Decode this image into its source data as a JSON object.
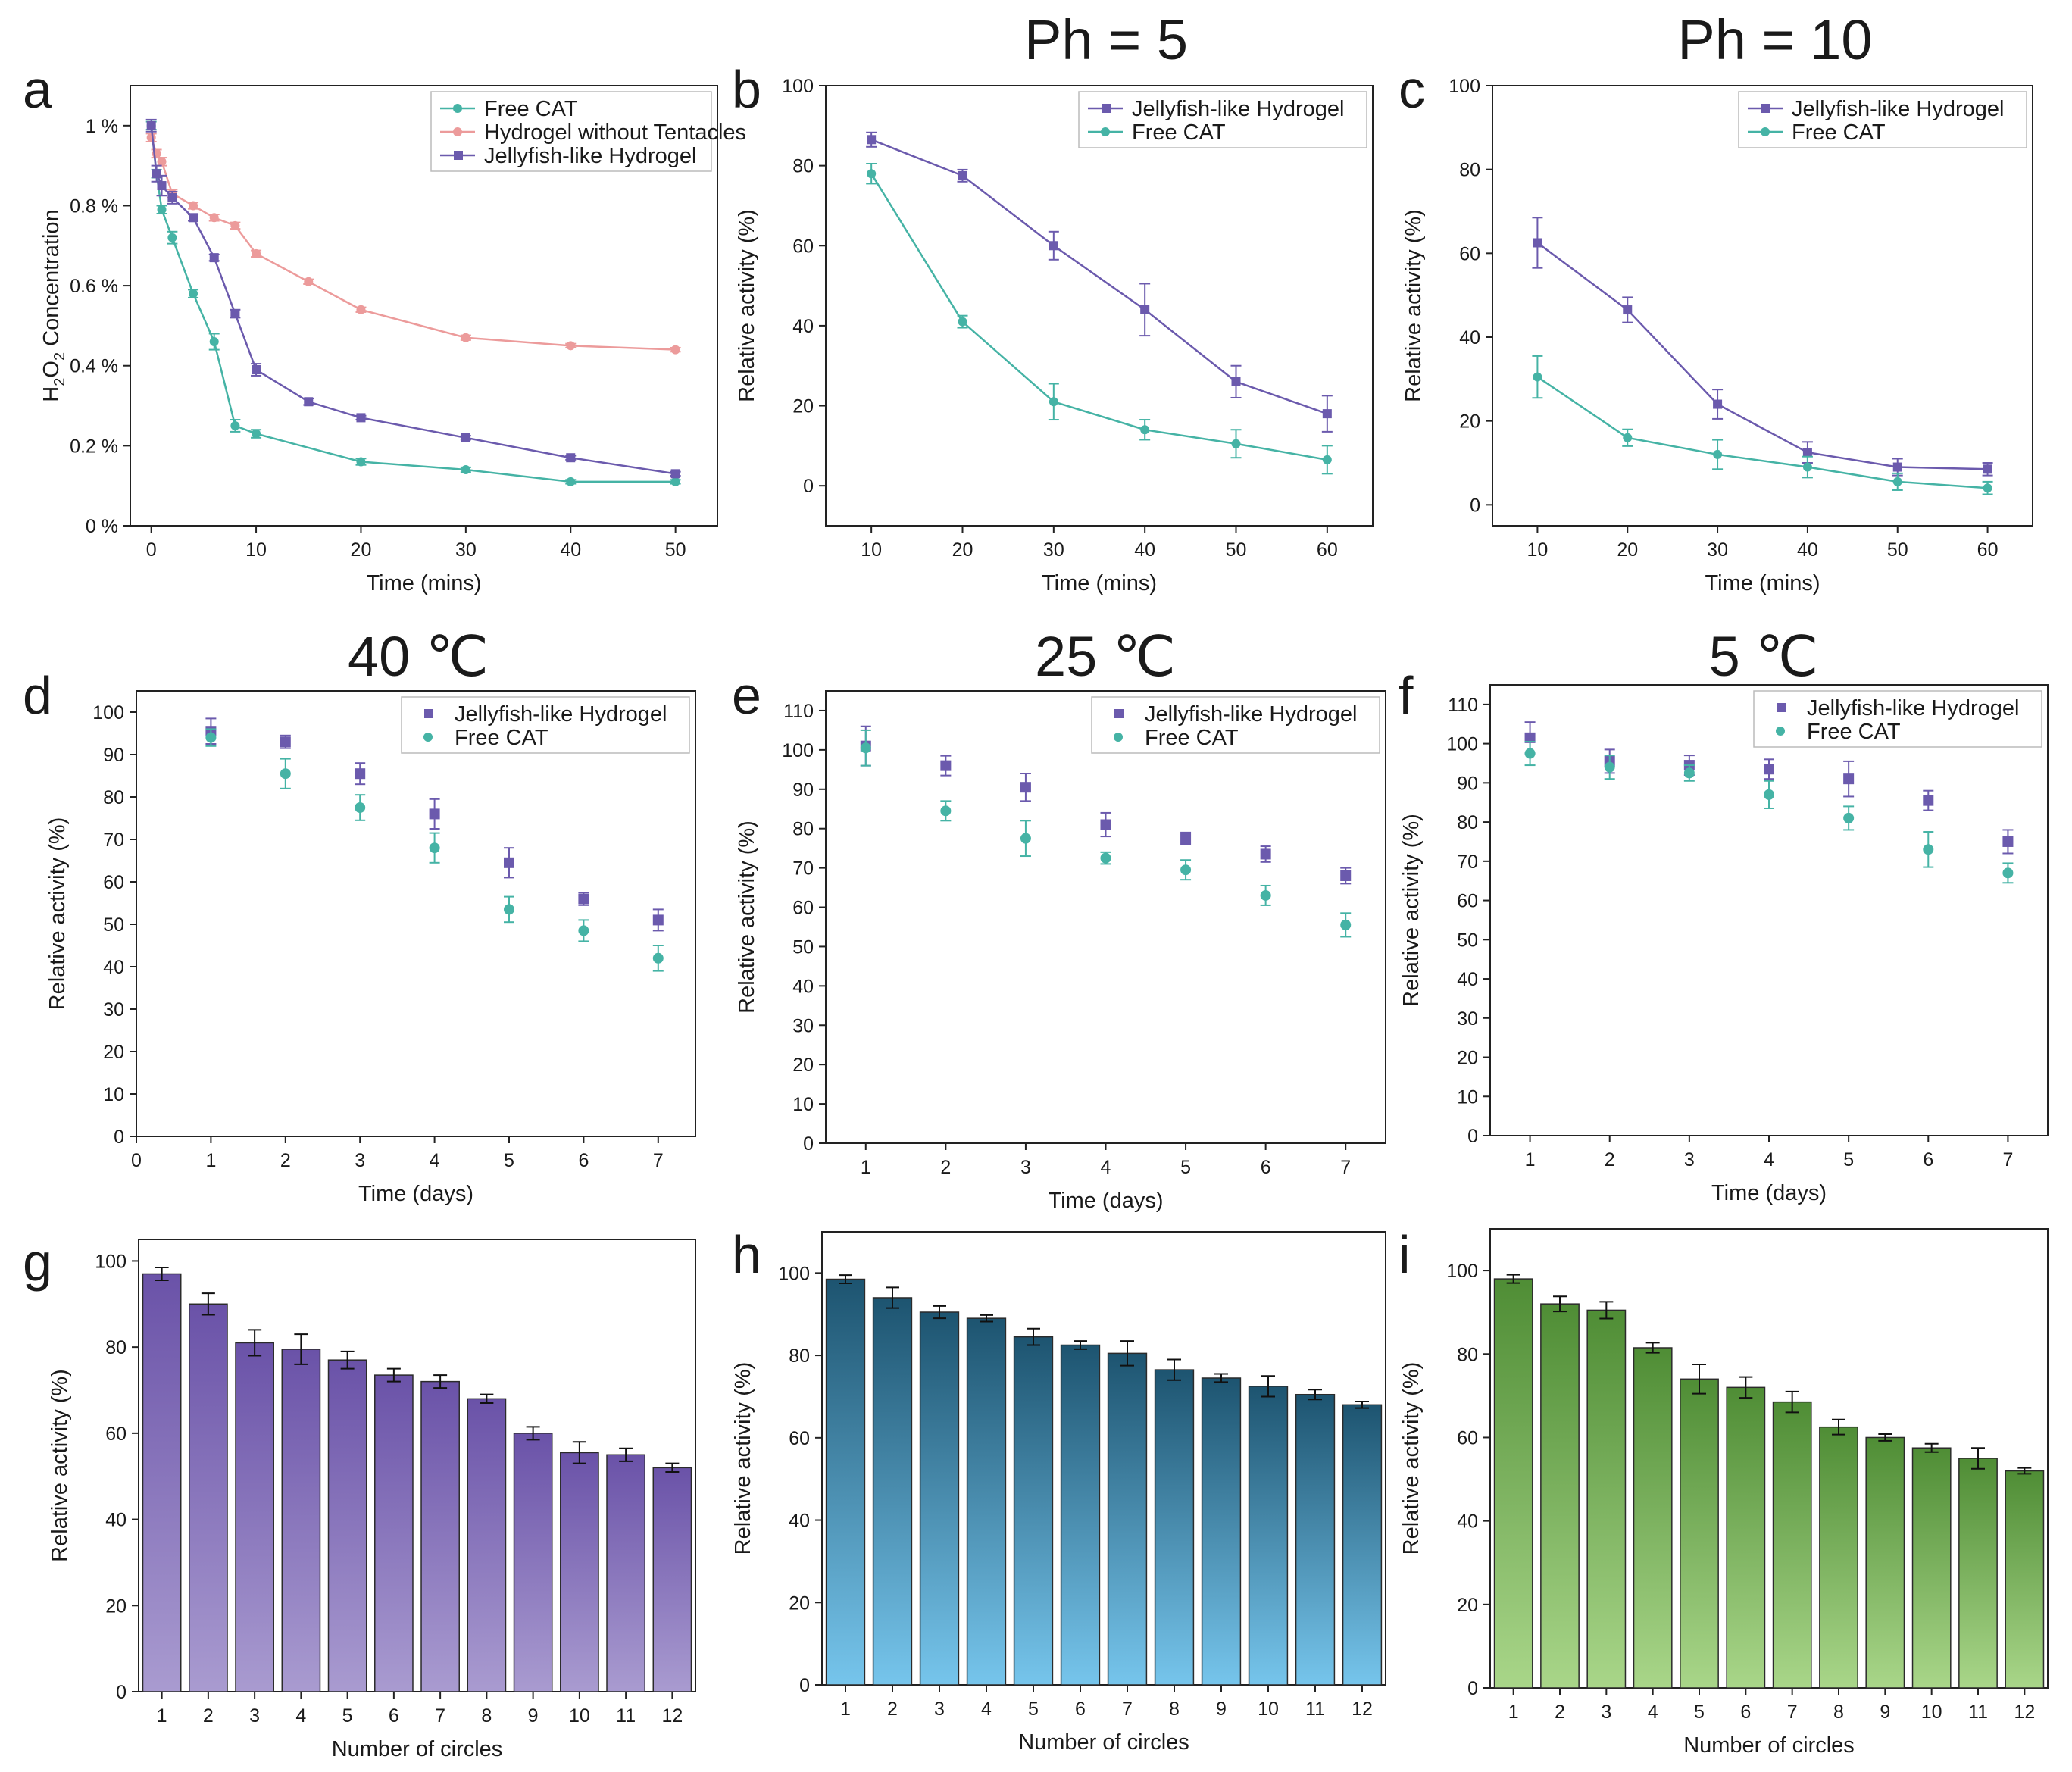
{
  "colors": {
    "purple": "#6b5aad",
    "teal": "#45b3a5",
    "pink": "#ec9b9b",
    "purple_bar_top": "#6a52a8",
    "purple_bar_bottom": "#a99bd0",
    "blue_bar_top": "#1d5470",
    "blue_bar_bottom": "#76c5ec",
    "green_bar_top": "#4f8d35",
    "green_bar_bottom": "#a9d689"
  },
  "column_titles": [
    "Ph  = 5",
    "Ph  = 10"
  ],
  "chart_data": [
    {
      "panel": "a",
      "type": "line",
      "xlabel": "Time (mins)",
      "ylabel_main": "H",
      "ylabel_sub1": "2",
      "ylabel_mid": "O",
      "ylabel_sub2": "2",
      "ylabel_end": " Concentration",
      "xlim": [
        -2,
        54
      ],
      "ylim": [
        0,
        1.1
      ],
      "xticks": [
        0,
        10,
        20,
        30,
        40,
        50
      ],
      "xtick_labels": [
        "0",
        "10",
        "20",
        "30",
        "40",
        "50"
      ],
      "yticks": [
        0,
        0.2,
        0.4,
        0.6,
        0.8,
        1.0
      ],
      "ytick_labels": [
        "0 %",
        "0.2 %",
        "0.4 %",
        "0.6 %",
        "0.8 %",
        "1 %"
      ],
      "legend_position": "top-right",
      "series": [
        {
          "name": "Free CAT",
          "color": "teal",
          "marker": "circle",
          "x": [
            0,
            0.5,
            1,
            2,
            4,
            6,
            8,
            10,
            20,
            30,
            40,
            50
          ],
          "y": [
            1.0,
            0.88,
            0.79,
            0.72,
            0.58,
            0.46,
            0.25,
            0.23,
            0.16,
            0.14,
            0.11,
            0.11
          ],
          "err": [
            0.01,
            0.01,
            0.01,
            0.015,
            0.01,
            0.02,
            0.015,
            0.01,
            0.008,
            0.006,
            0.005,
            0.005
          ]
        },
        {
          "name": "Hydrogel without Tentacles",
          "color": "pink",
          "marker": "circle",
          "x": [
            0,
            0.5,
            1,
            2,
            4,
            6,
            8,
            10,
            15,
            20,
            30,
            40,
            50
          ],
          "y": [
            0.97,
            0.93,
            0.91,
            0.83,
            0.8,
            0.77,
            0.75,
            0.68,
            0.61,
            0.54,
            0.47,
            0.45,
            0.44
          ],
          "err": [
            0.01,
            0.01,
            0.01,
            0.01,
            0.008,
            0.008,
            0.008,
            0.008,
            0.006,
            0.006,
            0.006,
            0.005,
            0.005
          ]
        },
        {
          "name": "Jellyfish-like Hydrogel",
          "color": "purple",
          "marker": "square",
          "x": [
            0,
            0.5,
            1,
            2,
            4,
            6,
            8,
            10,
            15,
            20,
            30,
            40,
            50
          ],
          "y": [
            1.0,
            0.88,
            0.85,
            0.82,
            0.77,
            0.67,
            0.53,
            0.39,
            0.31,
            0.27,
            0.22,
            0.17,
            0.13
          ],
          "err": [
            0.015,
            0.02,
            0.025,
            0.015,
            0.008,
            0.008,
            0.01,
            0.015,
            0.008,
            0.005,
            0.005,
            0.005,
            0.005
          ]
        }
      ]
    },
    {
      "panel": "b",
      "type": "line",
      "xlabel": "Time (mins)",
      "ylabel": "Relative activity (%)",
      "xlim": [
        5,
        65
      ],
      "ylim": [
        -10,
        100
      ],
      "xticks": [
        10,
        20,
        30,
        40,
        50,
        60
      ],
      "xtick_labels": [
        "10",
        "20",
        "30",
        "40",
        "50",
        "60"
      ],
      "yticks": [
        0,
        20,
        40,
        60,
        80,
        100
      ],
      "ytick_labels": [
        "0",
        "20",
        "40",
        "60",
        "80",
        "100"
      ],
      "legend_position": "top-right",
      "series": [
        {
          "name": "Jellyfish-like Hydrogel",
          "color": "purple",
          "marker": "square",
          "x": [
            10,
            20,
            30,
            40,
            50,
            60
          ],
          "y": [
            86.5,
            77.5,
            60,
            44,
            26,
            18
          ],
          "err": [
            1.8,
            1.5,
            3.5,
            6.5,
            4,
            4.5
          ]
        },
        {
          "name": "Free CAT",
          "color": "teal",
          "marker": "circle",
          "x": [
            10,
            20,
            30,
            40,
            50,
            60
          ],
          "y": [
            78,
            41,
            21,
            14,
            10.5,
            6.5
          ],
          "err": [
            2.5,
            1.5,
            4.5,
            2.5,
            3.5,
            3.5
          ]
        }
      ]
    },
    {
      "panel": "c",
      "type": "line",
      "xlabel": "Time (mins)",
      "ylabel": "Relative activity (%)",
      "xlim": [
        5,
        65
      ],
      "ylim": [
        -5,
        100
      ],
      "xticks": [
        10,
        20,
        30,
        40,
        50,
        60
      ],
      "xtick_labels": [
        "10",
        "20",
        "30",
        "40",
        "50",
        "60"
      ],
      "yticks": [
        0,
        20,
        40,
        60,
        80,
        100
      ],
      "ytick_labels": [
        "0",
        "20",
        "40",
        "60",
        "80",
        "100"
      ],
      "legend_position": "top-right",
      "series": [
        {
          "name": "Jellyfish-like Hydrogel",
          "color": "purple",
          "marker": "square",
          "x": [
            10,
            20,
            30,
            40,
            50,
            60
          ],
          "y": [
            62.5,
            46.5,
            24,
            12.5,
            9,
            8.5
          ],
          "err": [
            6,
            3,
            3.5,
            2.5,
            2,
            1.5
          ]
        },
        {
          "name": "Free CAT",
          "color": "teal",
          "marker": "circle",
          "x": [
            10,
            20,
            30,
            40,
            50,
            60
          ],
          "y": [
            30.5,
            16,
            12,
            9,
            5.5,
            4
          ],
          "err": [
            5,
            2,
            3.5,
            2.5,
            2,
            1.5
          ]
        }
      ]
    },
    {
      "panel": "d",
      "type": "scatter",
      "title": "40 ℃",
      "xlabel": "Time (days)",
      "ylabel": "Relative activity (%)",
      "xlim": [
        0,
        7.5
      ],
      "ylim": [
        0,
        105
      ],
      "xticks": [
        0,
        1,
        2,
        3,
        4,
        5,
        6,
        7
      ],
      "xtick_labels": [
        "0",
        "1",
        "2",
        "3",
        "4",
        "5",
        "6",
        "7"
      ],
      "yticks": [
        0,
        10,
        20,
        30,
        40,
        50,
        60,
        70,
        80,
        90,
        100
      ],
      "ytick_labels": [
        "0",
        "10",
        "20",
        "30",
        "40",
        "50",
        "60",
        "70",
        "80",
        "90",
        "100"
      ],
      "legend_position": "top-right",
      "series": [
        {
          "name": "Jellyfish-like Hydrogel",
          "color": "purple",
          "marker": "square",
          "x": [
            1,
            2,
            3,
            4,
            5,
            6,
            7
          ],
          "y": [
            95.5,
            93,
            85.5,
            76,
            64.5,
            56,
            51
          ],
          "err": [
            3,
            1.5,
            2.5,
            3.5,
            3.5,
            1.5,
            2.5
          ]
        },
        {
          "name": "Free CAT",
          "color": "teal",
          "marker": "circle",
          "x": [
            1,
            2,
            3,
            4,
            5,
            6,
            7
          ],
          "y": [
            94,
            85.5,
            77.5,
            68,
            53.5,
            48.5,
            42
          ],
          "err": [
            2,
            3.5,
            3,
            3.5,
            3,
            2.5,
            3
          ]
        }
      ]
    },
    {
      "panel": "e",
      "type": "scatter",
      "title": "25 ℃",
      "xlabel": "Time (days)",
      "ylabel": "Relative activity (%)",
      "xlim": [
        0.5,
        7.5
      ],
      "ylim": [
        0,
        115
      ],
      "xticks": [
        1,
        2,
        3,
        4,
        5,
        6,
        7
      ],
      "xtick_labels": [
        "1",
        "2",
        "3",
        "4",
        "5",
        "6",
        "7"
      ],
      "yticks": [
        0,
        10,
        20,
        30,
        40,
        50,
        60,
        70,
        80,
        90,
        100,
        110
      ],
      "ytick_labels": [
        "0",
        "10",
        "20",
        "30",
        "40",
        "50",
        "60",
        "70",
        "80",
        "90",
        "100",
        "110"
      ],
      "legend_position": "top-right",
      "series": [
        {
          "name": "Jellyfish-like Hydrogel",
          "color": "purple",
          "marker": "square",
          "x": [
            1,
            2,
            3,
            4,
            5,
            6,
            7
          ],
          "y": [
            101,
            96,
            90.5,
            81,
            77.5,
            73.5,
            68
          ],
          "err": [
            5,
            2.5,
            3.5,
            3,
            1.5,
            2,
            2
          ]
        },
        {
          "name": "Free CAT",
          "color": "teal",
          "marker": "circle",
          "x": [
            1,
            2,
            3,
            4,
            5,
            6,
            7
          ],
          "y": [
            100.5,
            84.5,
            77.5,
            72.5,
            69.5,
            63,
            55.5
          ],
          "err": [
            4.5,
            2.5,
            4.5,
            1.5,
            2.5,
            2.5,
            3
          ]
        }
      ]
    },
    {
      "panel": "f",
      "type": "scatter",
      "title": "5 ℃",
      "xlabel": "Time (days)",
      "ylabel": "Relative activity (%)",
      "xlim": [
        0.5,
        7.5
      ],
      "ylim": [
        0,
        115
      ],
      "xticks": [
        1,
        2,
        3,
        4,
        5,
        6,
        7
      ],
      "xtick_labels": [
        "1",
        "2",
        "3",
        "4",
        "5",
        "6",
        "7"
      ],
      "yticks": [
        0,
        10,
        20,
        30,
        40,
        50,
        60,
        70,
        80,
        90,
        100,
        110
      ],
      "ytick_labels": [
        "0",
        "10",
        "20",
        "30",
        "40",
        "50",
        "60",
        "70",
        "80",
        "90",
        "100",
        "110"
      ],
      "legend_position": "top-right",
      "series": [
        {
          "name": "Jellyfish-like Hydrogel",
          "color": "purple",
          "marker": "square",
          "x": [
            1,
            2,
            3,
            4,
            5,
            6,
            7
          ],
          "y": [
            101.5,
            95.5,
            94.5,
            93.5,
            91,
            85.5,
            75
          ],
          "err": [
            4,
            3,
            2.5,
            2.5,
            4.5,
            2.5,
            3
          ]
        },
        {
          "name": "Free CAT",
          "color": "teal",
          "marker": "circle",
          "x": [
            1,
            2,
            3,
            4,
            5,
            6,
            7
          ],
          "y": [
            97.5,
            94,
            92.5,
            87,
            81,
            73,
            67
          ],
          "err": [
            3,
            3,
            2,
            3.5,
            3,
            4.5,
            2.5
          ]
        }
      ]
    },
    {
      "panel": "g",
      "type": "bar",
      "xlabel": "Number of circles",
      "ylabel": "Relative activity (%)",
      "ylim": [
        0,
        105
      ],
      "yticks": [
        0,
        20,
        40,
        60,
        80,
        100
      ],
      "ytick_labels": [
        "0",
        "20",
        "40",
        "60",
        "80",
        "100"
      ],
      "categories": [
        "1",
        "2",
        "3",
        "4",
        "5",
        "6",
        "7",
        "8",
        "9",
        "10",
        "11",
        "12"
      ],
      "values": [
        97,
        90,
        81,
        79.5,
        77,
        73.5,
        72,
        68,
        60,
        55.5,
        55,
        52
      ],
      "err": [
        1.5,
        2.5,
        3,
        3.5,
        2,
        1.5,
        1.5,
        1,
        1.5,
        2.5,
        1.5,
        1
      ],
      "gradient": [
        "purple_bar_top",
        "purple_bar_bottom"
      ]
    },
    {
      "panel": "h",
      "type": "bar",
      "xlabel": "Number of circles",
      "ylabel": "Relative activity (%)",
      "ylim": [
        0,
        110
      ],
      "yticks": [
        0,
        20,
        40,
        60,
        80,
        100
      ],
      "ytick_labels": [
        "0",
        "20",
        "40",
        "60",
        "80",
        "100"
      ],
      "categories": [
        "1",
        "2",
        "3",
        "4",
        "5",
        "6",
        "7",
        "8",
        "9",
        "10",
        "11",
        "12"
      ],
      "values": [
        98.5,
        94,
        90.5,
        89,
        84.5,
        82.5,
        80.5,
        76.5,
        74.5,
        72.5,
        70.5,
        68
      ],
      "err": [
        1,
        2.5,
        1.5,
        0.8,
        2,
        1,
        3,
        2.5,
        1,
        2.5,
        1.2,
        0.8
      ],
      "gradient": [
        "blue_bar_top",
        "blue_bar_bottom"
      ]
    },
    {
      "panel": "i",
      "type": "bar",
      "xlabel": "Number of circles",
      "ylabel": "Relative activity (%)",
      "ylim": [
        0,
        110
      ],
      "yticks": [
        0,
        20,
        40,
        60,
        80,
        100
      ],
      "ytick_labels": [
        "0",
        "20",
        "40",
        "60",
        "80",
        "100"
      ],
      "categories": [
        "1",
        "2",
        "3",
        "4",
        "5",
        "6",
        "7",
        "8",
        "9",
        "10",
        "11",
        "12"
      ],
      "values": [
        98,
        92,
        90.5,
        81.5,
        74,
        72,
        68.5,
        62.5,
        60,
        57.5,
        55,
        52
      ],
      "err": [
        1,
        1.8,
        2,
        1.2,
        3.5,
        2.5,
        2.5,
        1.8,
        0.8,
        1,
        2.5,
        0.7
      ],
      "gradient": [
        "green_bar_top",
        "green_bar_bottom"
      ]
    }
  ]
}
